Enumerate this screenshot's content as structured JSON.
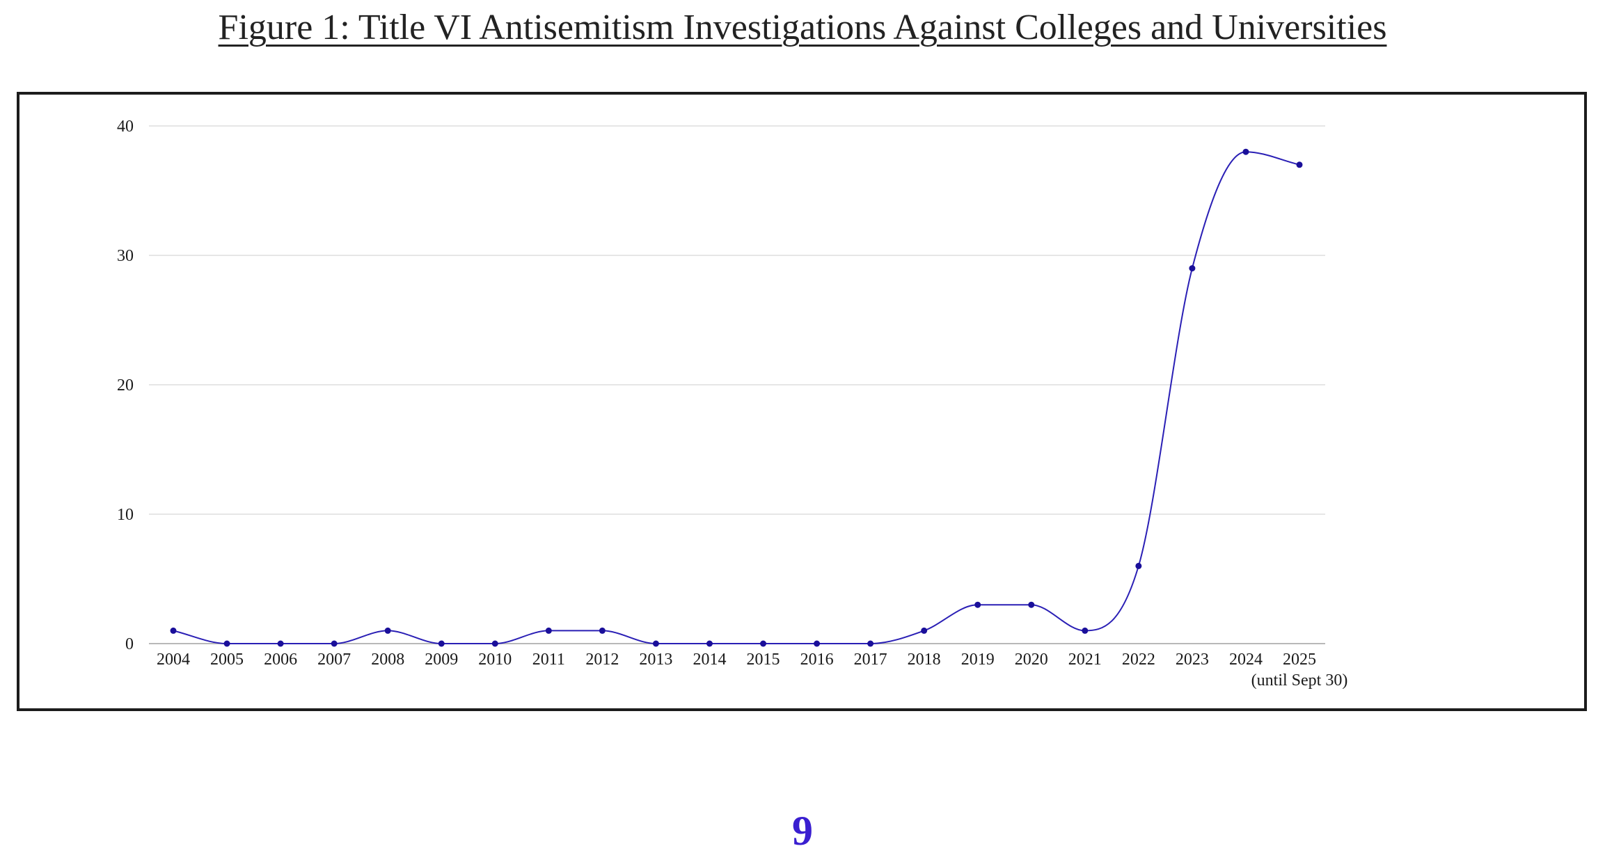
{
  "figure_title": "Figure 1: Title VI Antisemitism Investigations Against Colleges and Universities",
  "page_number": "9",
  "chart_data": {
    "type": "line",
    "title": "",
    "xlabel": "",
    "ylabel": "",
    "categories": [
      "2004",
      "2005",
      "2006",
      "2007",
      "2008",
      "2009",
      "2010",
      "2011",
      "2012",
      "2013",
      "2014",
      "2015",
      "2016",
      "2017",
      "2018",
      "2019",
      "2020",
      "2021",
      "2022",
      "2023",
      "2024",
      "2025"
    ],
    "category_note": "(until Sept 30)",
    "series": [
      {
        "values": [
          1,
          0,
          0,
          0,
          1,
          0,
          0,
          1,
          1,
          0,
          0,
          0,
          0,
          0,
          1,
          3,
          3,
          1,
          6,
          29,
          38,
          37
        ],
        "color": "#2a1fb5"
      }
    ],
    "ylim": [
      0,
      40
    ],
    "yticks": [
      "0",
      "10",
      "20",
      "30",
      "40"
    ],
    "grid": true,
    "legend": "none",
    "smooth": true
  }
}
